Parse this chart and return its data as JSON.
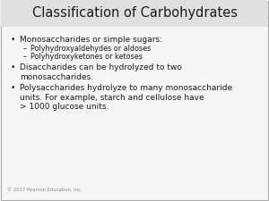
{
  "title": "Classification of Carbohydrates",
  "title_fontsize": 10.5,
  "body_fontsize": 6.5,
  "sub_fontsize": 5.8,
  "footer_fontsize": 3.8,
  "bg_color": "#f5f5f5",
  "title_bg_color": "#e0e0e0",
  "text_color": "#1a1a1a",
  "footer_text": "© 2017 Pearson Education, Inc.",
  "border_color": "#aaaaaa",
  "bullet_items": [
    {
      "text": "Monosaccharides or simple sugars:",
      "sub_items": [
        "Polyhydroxyaldehydes or aldoses",
        "Polyhydroxyketones or ketoses"
      ]
    },
    {
      "text": "Disaccharides can be hydrolyzed to two\nmonosaccharides.",
      "sub_items": []
    },
    {
      "text": "Polysaccharides hydrolyze to many monosaccharide\nunits. For example, starch and cellulose have\n> 1000 glucose units.",
      "sub_items": []
    }
  ]
}
